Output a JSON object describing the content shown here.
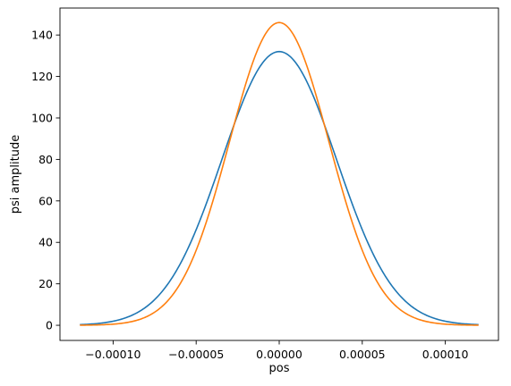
{
  "chart_data": {
    "type": "line",
    "title": "",
    "xlabel": "pos",
    "ylabel": "psi amplitude",
    "xlim": [
      -0.000132,
      0.000132
    ],
    "ylim": [
      -7.3,
      153
    ],
    "grid": false,
    "x_ticks": [
      -0.0001,
      -5e-05,
      0.0,
      5e-05,
      0.0001
    ],
    "x_tick_labels": [
      "−0.00010",
      "−0.00005",
      "0.00000",
      "0.00005",
      "0.00010"
    ],
    "y_ticks": [
      0,
      20,
      40,
      60,
      80,
      100,
      120,
      140
    ],
    "y_tick_labels": [
      "0",
      "20",
      "40",
      "60",
      "80",
      "100",
      "120",
      "140"
    ],
    "series": [
      {
        "color": "#1f77b4",
        "x": [
          -0.00012,
          -0.000105,
          -9e-05,
          -7.5e-05,
          -6e-05,
          -5e-05,
          -4e-05,
          -3e-05,
          -2e-05,
          -1e-05,
          0.0,
          1e-05,
          2e-05,
          3e-05,
          4e-05,
          5e-05,
          6e-05,
          7.5e-05,
          9e-05,
          0.000105,
          0.00012
        ],
        "y": [
          0.3,
          1.2,
          4.0,
          11.3,
          26.8,
          44.3,
          66.3,
          90.1,
          112.3,
          127.1,
          132.0,
          127.1,
          112.3,
          90.1,
          66.3,
          44.3,
          26.8,
          11.3,
          4.0,
          1.2,
          0.3
        ]
      },
      {
        "color": "#ff7f0e",
        "x": [
          -0.00012,
          -0.000105,
          -9e-05,
          -7.5e-05,
          -6e-05,
          -5e-05,
          -4e-05,
          -3e-05,
          -2e-05,
          -1e-05,
          0.0,
          1e-05,
          2e-05,
          3e-05,
          4e-05,
          5e-05,
          6e-05,
          7.5e-05,
          9e-05,
          0.000105,
          0.00012
        ],
        "y": [
          0.0,
          0.1,
          0.6,
          3.1,
          12.1,
          27.9,
          54.2,
          88.3,
          120.5,
          139.8,
          146.0,
          139.8,
          120.5,
          88.3,
          54.2,
          27.9,
          12.1,
          3.1,
          0.6,
          0.1,
          0.0
        ]
      }
    ]
  }
}
